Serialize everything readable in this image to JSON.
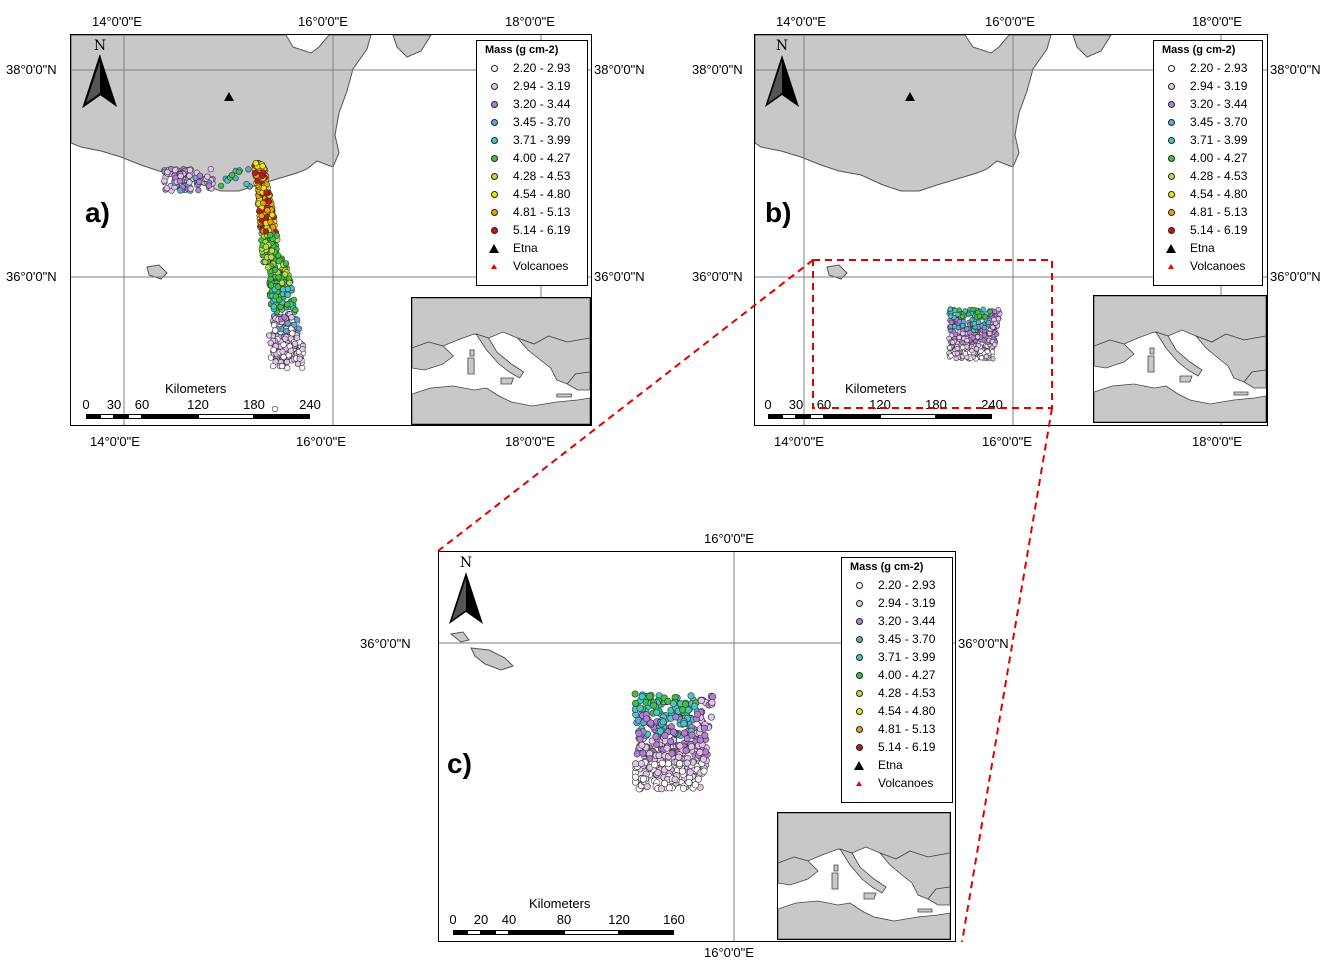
{
  "colors": {
    "land": "#c8c8c8",
    "coast": "#555555",
    "grid": "#7f7f7f",
    "connector": "#e00000",
    "etna": "#000000",
    "volcanoes": "#e00000"
  },
  "legend": {
    "title": "Mass (g cm-2)",
    "classes": [
      {
        "label": "2.20 - 2.93",
        "color": "#ffffff"
      },
      {
        "label": "2.94 - 3.19",
        "color": "#e6c3ee"
      },
      {
        "label": "3.20 - 3.44",
        "color": "#b47ed8"
      },
      {
        "label": "3.45 - 3.70",
        "color": "#5ea8d6"
      },
      {
        "label": "3.71 - 3.99",
        "color": "#41c8c8"
      },
      {
        "label": "4.00 - 4.27",
        "color": "#3cc43c"
      },
      {
        "label": "4.28 - 4.53",
        "color": "#b4e03c"
      },
      {
        "label": "4.54 - 4.80",
        "color": "#f0e800"
      },
      {
        "label": "4.81 - 5.13",
        "color": "#f0a000"
      },
      {
        "label": "5.14 - 6.19",
        "color": "#c81414"
      }
    ],
    "etna_label": "Etna",
    "volcanoes_label": "Volcanoes"
  },
  "north_arrow": {
    "letter": "N"
  },
  "panels": {
    "a": {
      "label": "a)",
      "top_lon_labels": [
        "14°0'0\"E",
        "16°0'0\"E",
        "18°0'0\"E"
      ],
      "bottom_lon_labels": [
        "14°0'0\"E",
        "16°0'0\"E",
        "18°0'0\"E"
      ],
      "left_lat_labels": [
        "38°0'0\"N",
        "36°0'0\"N"
      ],
      "right_lat_labels": [
        "38°0'0\"N",
        "36°0'0\"N"
      ],
      "scalebar": {
        "title": "Kilometers",
        "ticks": [
          "0",
          "30",
          "60",
          "120",
          "180",
          "240"
        ]
      }
    },
    "b": {
      "label": "b)",
      "top_lon_labels": [
        "14°0'0\"E",
        "16°0'0\"E",
        "18°0'0\"E"
      ],
      "bottom_lon_labels": [
        "14°0'0\"E",
        "16°0'0\"E",
        "18°0'0\"E"
      ],
      "left_lat_labels": [
        "38°0'0\"N",
        "36°0'0\"N"
      ],
      "right_lat_labels": [
        "38°0'0\"N",
        "36°0'0\"N"
      ],
      "scalebar": {
        "title": "Kilometers",
        "ticks": [
          "0",
          "30",
          "60",
          "120",
          "180",
          "240"
        ]
      }
    },
    "c": {
      "label": "c)",
      "top_lon_labels": [
        "16°0'0\"E"
      ],
      "bottom_lon_labels": [
        "16°0'0\"E"
      ],
      "left_lat_labels": [
        "36°0'0\"N"
      ],
      "right_lat_labels": [
        "36°0'0\"N"
      ],
      "scalebar": {
        "title": "Kilometers",
        "ticks": [
          "0",
          "20",
          "40",
          "80",
          "120",
          "160"
        ]
      }
    }
  }
}
